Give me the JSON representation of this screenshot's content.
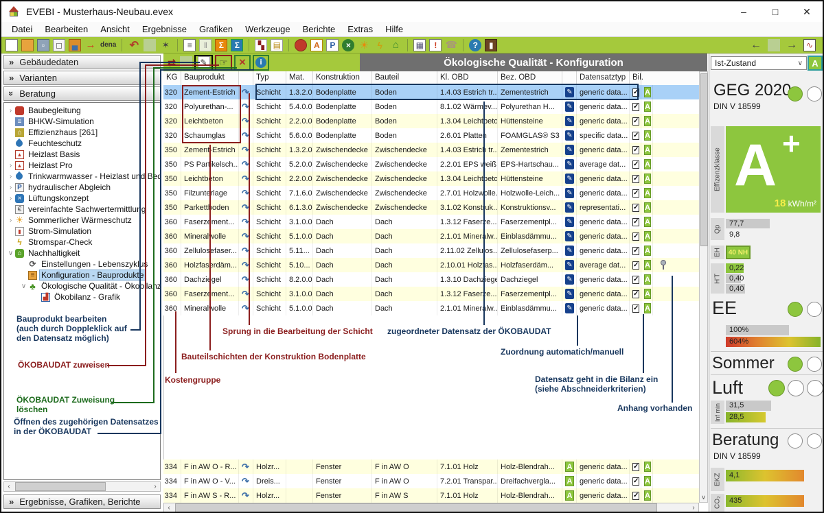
{
  "window": {
    "title": "EVEBI  - Musterhaus-Neubau.evex"
  },
  "menu": {
    "items": [
      "Datei",
      "Bearbeiten",
      "Ansicht",
      "Ergebnisse",
      "Grafiken",
      "Werkzeuge",
      "Berichte",
      "Extras",
      "Hilfe"
    ]
  },
  "toolbar": {
    "dena": "dena",
    "items": [
      "new-file",
      "open-folder",
      "save",
      "copy",
      "stamp-brush",
      "export-folder",
      "dena-logo",
      "sep",
      "undo",
      "placeholder",
      "magic-wand",
      "sep",
      "report-document",
      "columns",
      "sum-orange",
      "sum-blue",
      "sep",
      "flowchart",
      "layer-list",
      "sep",
      "construction-cap",
      "document-a",
      "document-p",
      "fan",
      "sun",
      "bolt",
      "eco-house",
      "sep",
      "report-calc",
      "report-alert",
      "phone",
      "sep",
      "help",
      "exit-door"
    ],
    "right_items": [
      "back-arrow",
      "placeholder",
      "forward-edit",
      "result-chart"
    ]
  },
  "sidebar": {
    "sections": [
      "Gebäudedaten",
      "Varianten",
      "Beratung"
    ],
    "bottom_section": "Ergebnisse, Grafiken, Berichte",
    "tree": [
      {
        "label": "Baubegleitung",
        "icon": "construction-cap",
        "depth": 1,
        "expand": "collapsed"
      },
      {
        "label": "BHKW-Simulation",
        "icon": "bhkw",
        "depth": 1
      },
      {
        "label": "Effizienzhaus [261]",
        "icon": "effizienzhaus",
        "depth": 1
      },
      {
        "label": "Feuchteschutz",
        "icon": "moisture-drop",
        "depth": 1
      },
      {
        "label": "Heizlast Basis",
        "icon": "heat-load",
        "depth": 1
      },
      {
        "label": "Heizlast Pro",
        "icon": "heat-load",
        "depth": 1,
        "expand": "collapsed"
      },
      {
        "label": "Trinkwarmwasser - Heizlast und Beda",
        "icon": "water-drop",
        "depth": 1,
        "expand": "collapsed"
      },
      {
        "label": "hydraulischer Abgleich",
        "icon": "hydraulic",
        "depth": 1,
        "expand": "collapsed"
      },
      {
        "label": "Lüftungskonzept",
        "icon": "fan",
        "depth": 1,
        "expand": "collapsed"
      },
      {
        "label": "vereinfachte Sachwertermittlung",
        "icon": "house-value",
        "depth": 1
      },
      {
        "label": "Sommerlicher Wärmeschutz",
        "icon": "sun",
        "depth": 1,
        "expand": "collapsed"
      },
      {
        "label": "Strom-Simulation",
        "icon": "power-chart",
        "depth": 1
      },
      {
        "label": "Stromspar-Check",
        "icon": "bolt",
        "depth": 1
      },
      {
        "label": "Nachhaltigkeit",
        "icon": "sustainability",
        "depth": 1,
        "expand": "expanded"
      },
      {
        "label": "Einstellungen - Lebenszyklus",
        "icon": "lifecycle",
        "depth": 2
      },
      {
        "label": "Konfiguration - Bauprodukte",
        "icon": "config-list",
        "depth": 2,
        "selected": true
      },
      {
        "label": "Ökologische Qualität - Ökobilanz",
        "icon": "eco-tree",
        "depth": 2,
        "expand": "expanded"
      },
      {
        "label": "Ökobilanz - Grafik",
        "icon": "chart",
        "depth": 3
      }
    ]
  },
  "main": {
    "title": "Ökologische Qualität - Konfiguration",
    "table": {
      "headers": {
        "kg": "KG",
        "bauprodukt": "Bauprodukt",
        "typ": "Typ",
        "mat": "Mat.",
        "konstruktion": "Konstruktion",
        "bauteil": "Bauteil",
        "kl_obd": "Kl. OBD",
        "bez_obd": "Bez. OBD",
        "datensatztyp": "Datensatztyp",
        "bil": "Bil."
      },
      "rows": [
        {
          "kg": "320",
          "bauprodukt": "Zement-Estrich",
          "typ": "Schicht",
          "mat": "1.3.2.0",
          "konstruktion": "Bodenplatte",
          "bauteil": "Boden",
          "kl_obd": "1.4.03 Estrich tr...",
          "bez_obd": "Zementestrich",
          "datensatztyp": "generic data...",
          "selected": true
        },
        {
          "kg": "320",
          "bauprodukt": "Polyurethan-...",
          "typ": "Schicht",
          "mat": "5.4.0.0",
          "konstruktion": "Bodenplatte",
          "bauteil": "Boden",
          "kl_obd": "8.1.02 Wärmev...",
          "bez_obd": "Polyurethan H...",
          "datensatztyp": "generic data..."
        },
        {
          "kg": "320",
          "bauprodukt": "Leichtbeton",
          "typ": "Schicht",
          "mat": "2.2.0.0",
          "konstruktion": "Bodenplatte",
          "bauteil": "Boden",
          "kl_obd": "1.3.04 Leichtbeton",
          "bez_obd": "Hüttensteine",
          "datensatztyp": "generic data..."
        },
        {
          "kg": "320",
          "bauprodukt": "Schaumglas",
          "typ": "Schicht",
          "mat": "5.6.0.0",
          "konstruktion": "Bodenplatte",
          "bauteil": "Boden",
          "kl_obd": "2.6.01 Platten",
          "bez_obd": "FOAMGLAS® S3",
          "datensatztyp": "specific data..."
        },
        {
          "kg": "350",
          "bauprodukt": "Zement-Estrich",
          "typ": "Schicht",
          "mat": "1.3.2.0",
          "konstruktion": "Zwischendecke",
          "bauteil": "Zwischendecke",
          "kl_obd": "1.4.03 Estrich tr...",
          "bez_obd": "Zementestrich",
          "datensatztyp": "generic data..."
        },
        {
          "kg": "350",
          "bauprodukt": "PS Partikelsch...",
          "typ": "Schicht",
          "mat": "5.2.0.0",
          "konstruktion": "Zwischendecke",
          "bauteil": "Zwischendecke",
          "kl_obd": "2.2.01 EPS weiß",
          "bez_obd": "EPS-Hartschau...",
          "datensatztyp": "average dat..."
        },
        {
          "kg": "350",
          "bauprodukt": "Leichtbeton",
          "typ": "Schicht",
          "mat": "2.2.0.0",
          "konstruktion": "Zwischendecke",
          "bauteil": "Zwischendecke",
          "kl_obd": "1.3.04 Leichtbeton",
          "bez_obd": "Hüttensteine",
          "datensatztyp": "generic data..."
        },
        {
          "kg": "350",
          "bauprodukt": "Filzunterlage",
          "typ": "Schicht",
          "mat": "7.1.6.0",
          "konstruktion": "Zwischendecke",
          "bauteil": "Zwischendecke",
          "kl_obd": "2.7.01 Holzwolle...",
          "bez_obd": "Holzwolle-Leich...",
          "datensatztyp": "generic data..."
        },
        {
          "kg": "350",
          "bauprodukt": "Parkettboden",
          "typ": "Schicht",
          "mat": "6.1.3.0",
          "konstruktion": "Zwischendecke",
          "bauteil": "Zwischendecke",
          "kl_obd": "3.1.02 Konstruk...",
          "bez_obd": "Konstruktionsv...",
          "datensatztyp": "representati..."
        },
        {
          "kg": "360",
          "bauprodukt": "Faserzement...",
          "typ": "Schicht",
          "mat": "3.1.0.0",
          "konstruktion": "Dach",
          "bauteil": "Dach",
          "kl_obd": "1.3.12 Faserze...",
          "bez_obd": "Faserzementpl...",
          "datensatztyp": "generic data..."
        },
        {
          "kg": "360",
          "bauprodukt": "Mineralwolle",
          "typ": "Schicht",
          "mat": "5.1.0.0",
          "konstruktion": "Dach",
          "bauteil": "Dach",
          "kl_obd": "2.1.01 Mineralw...",
          "bez_obd": "Einblasdämmu...",
          "datensatztyp": "generic data..."
        },
        {
          "kg": "360",
          "bauprodukt": "Zellulosefaser...",
          "typ": "Schicht",
          "mat": "5.11...",
          "konstruktion": "Dach",
          "bauteil": "Dach",
          "kl_obd": "2.11.02 Zellulos...",
          "bez_obd": "Zellulosefaserp...",
          "datensatztyp": "generic data..."
        },
        {
          "kg": "360",
          "bauprodukt": "Holzfaserdäm...",
          "typ": "Schicht",
          "mat": "5.10...",
          "konstruktion": "Dach",
          "bauteil": "Dach",
          "kl_obd": "2.10.01 Holzfas...",
          "bez_obd": "Holzfaserdäm...",
          "datensatztyp": "average dat...",
          "pin": true
        },
        {
          "kg": "360",
          "bauprodukt": "Dachziegel",
          "typ": "Schicht",
          "mat": "8.2.0.0",
          "konstruktion": "Dach",
          "bauteil": "Dach",
          "kl_obd": "1.3.10 Dachziegel",
          "bez_obd": "Dachziegel",
          "datensatztyp": "generic data..."
        },
        {
          "kg": "360",
          "bauprodukt": "Faserzement...",
          "typ": "Schicht",
          "mat": "3.1.0.0",
          "konstruktion": "Dach",
          "bauteil": "Dach",
          "kl_obd": "1.3.12 Faserze...",
          "bez_obd": "Faserzementpl...",
          "datensatztyp": "generic data..."
        },
        {
          "kg": "360",
          "bauprodukt": "Mineralwolle",
          "typ": "Schicht",
          "mat": "5.1.0.0",
          "konstruktion": "Dach",
          "bauteil": "Dach",
          "kl_obd": "2.1.01 Mineralw...",
          "bez_obd": "Einblasdämmu...",
          "datensatztyp": "generic data..."
        }
      ],
      "bottom_rows": [
        {
          "kg": "334",
          "bauprodukt": "F in AW O - R...",
          "typ": "Holzr...",
          "mat": "",
          "konstruktion": "Fenster",
          "bauteil": "F in AW O",
          "kl_obd": "7.1.01 Holz",
          "bez_obd": "Holz-Blendrah...",
          "datensatztyp": "generic data..."
        },
        {
          "kg": "334",
          "bauprodukt": "F in AW O - V...",
          "typ": "Dreis...",
          "mat": "",
          "konstruktion": "Fenster",
          "bauteil": "F in AW O",
          "kl_obd": "7.2.01 Transpar...",
          "bez_obd": "Dreifachvergla...",
          "datensatztyp": "generic data..."
        },
        {
          "kg": "334",
          "bauprodukt": "F in AW S - R...",
          "typ": "Holzr...",
          "mat": "",
          "konstruktion": "Fenster",
          "bauteil": "F in AW S",
          "kl_obd": "7.1.01 Holz",
          "bez_obd": "Holz-Blendrah...",
          "datensatztyp": "generic data..."
        }
      ]
    }
  },
  "annotations": {
    "edit_note": [
      "Bauprodukt bearbeiten",
      "(auch durch Doppleklick auf",
      "den Datensatz möglich)"
    ],
    "assign_note": "ÖKOBAUDAT zuweisen",
    "delete_note": [
      "ÖKOBAUDAT Zuweisung",
      "löschen"
    ],
    "open_note": [
      "Öffnen des zugehörigen Datensatzes",
      "in der ÖKOBAUDAT"
    ],
    "sprung": "Sprung in die Bearbeitung der Schicht",
    "datensatz": "zugeordneter Datensatz der ÖKOBAUDAT",
    "schichten": "Bauteilschichten der Konstruktion Bodenplatte",
    "kostengruppe": "Kostengruppe",
    "zuordnung": "Zuordnung automatich/manuell",
    "bilanz": [
      "Datensatz geht in die Bilanz ein",
      "(siehe Abschneiderkriterien)"
    ],
    "anhang": "Anhang vorhanden"
  },
  "panel": {
    "variant": "Ist-Zustand",
    "variant_class": "A",
    "geg_title": "GEG 2020",
    "geg_norm": "DIN V 18599",
    "class_axis": "Effizenzklasse",
    "energy_class_letter": "A",
    "energy_class_plus": "+",
    "energy_value": "18",
    "energy_unit": "kWh/m²",
    "qp_label": "Qp",
    "qp_1": "77,7",
    "qp_2": "9,8",
    "eh_label": "EH",
    "eh_badge": "40 NH",
    "ht_label": "H'T",
    "ht_1": "0,22",
    "ht_2": "0,40",
    "ht_3": "0,40",
    "ee_title": "EE",
    "ee_1": "100%",
    "ee_2": "604%",
    "sommer_title": "Sommer",
    "luft_title": "Luft",
    "inf_label": "Inf min",
    "inf_1": "31,5",
    "inf_2": "28,5",
    "beratung_title": "Beratung",
    "beratung_norm": "DIN V 18599",
    "ekz_label": "EKZ",
    "ekz_value": "4,1",
    "co2_label": "CO₂",
    "co2_value": "435"
  },
  "colors": {
    "toolbar_green": "#a5c93c",
    "class_green": "#8dc63e",
    "selected_row": "#a9d1f7",
    "annotation_navy": "#17365d",
    "annotation_red": "#8b1e1e",
    "annotation_green": "#1d6b1d"
  }
}
